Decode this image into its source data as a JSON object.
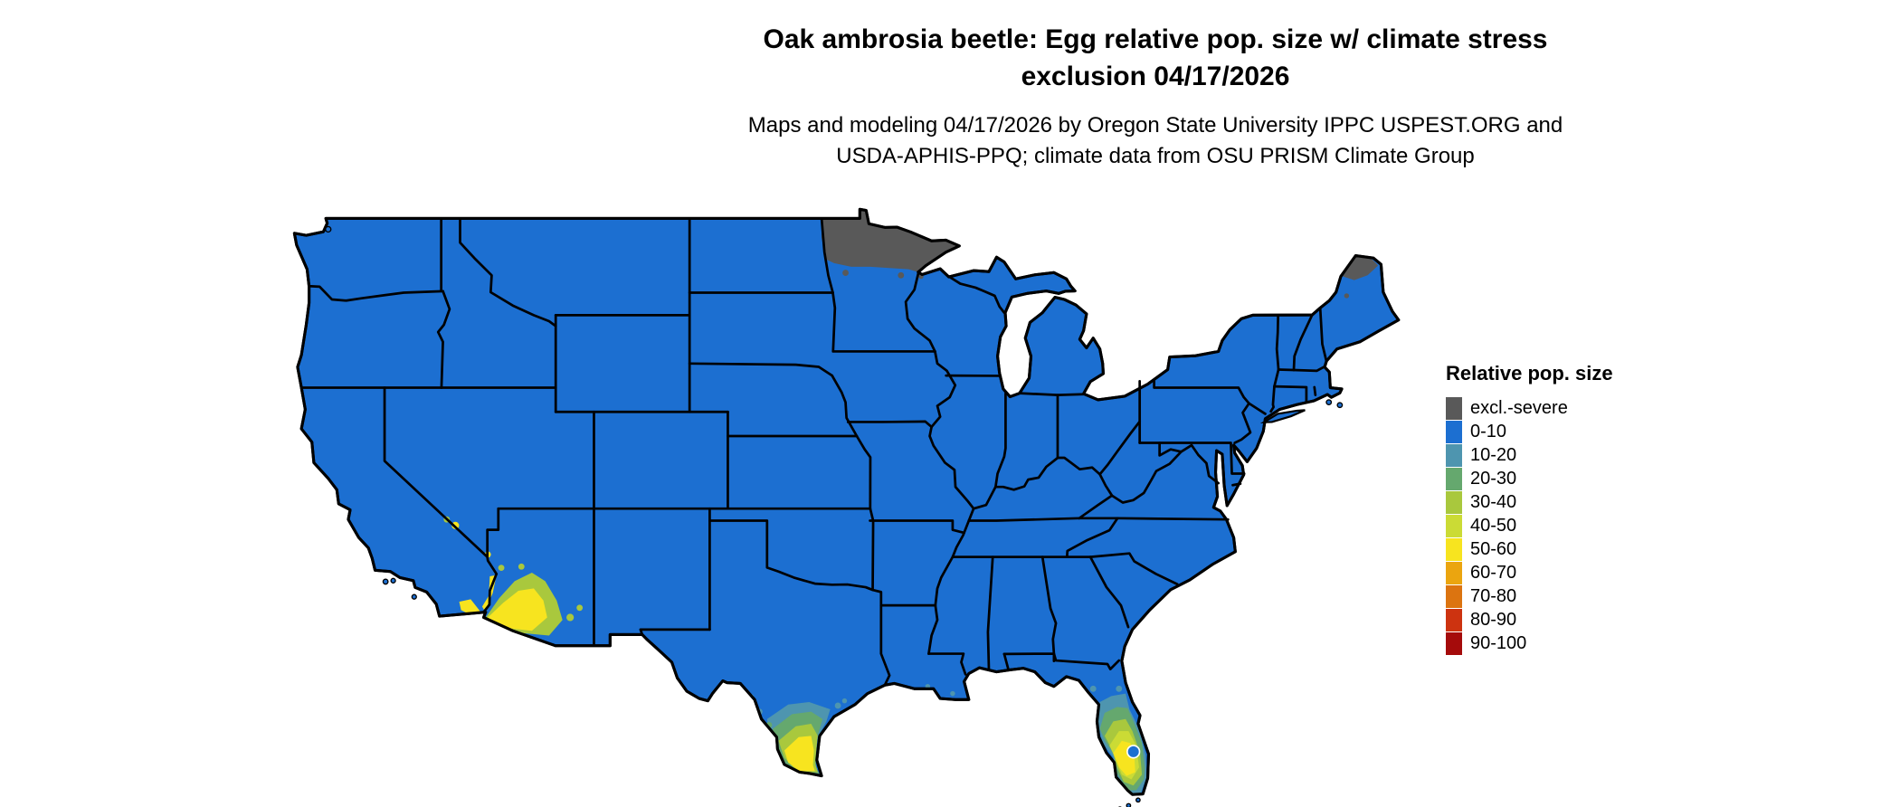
{
  "title": {
    "line1": "Oak ambrosia beetle: Egg relative pop. size w/ climate stress",
    "line2": "exclusion 04/17/2026"
  },
  "subtitle": {
    "line1": "Maps and modeling 04/17/2026 by Oregon State University IPPC USPEST.ORG and",
    "line2": "USDA-APHIS-PPQ; climate data from OSU PRISM Climate Group"
  },
  "legend": {
    "title": "Relative pop. size",
    "items": [
      {
        "label": "excl.-severe",
        "color": "#595959"
      },
      {
        "label": "0-10",
        "color": "#1c6fd1"
      },
      {
        "label": "10-20",
        "color": "#4e95af"
      },
      {
        "label": "20-30",
        "color": "#65a86e"
      },
      {
        "label": "30-40",
        "color": "#a9c83d"
      },
      {
        "label": "40-50",
        "color": "#cbdb35"
      },
      {
        "label": "50-60",
        "color": "#f7e41f"
      },
      {
        "label": "60-70",
        "color": "#eba50f"
      },
      {
        "label": "70-80",
        "color": "#dc7410"
      },
      {
        "label": "80-90",
        "color": "#cd3310"
      },
      {
        "label": "90-100",
        "color": "#a50b0b"
      }
    ]
  },
  "map": {
    "type": "choropleth",
    "region": "contiguous United States",
    "land_default_class": "0-10",
    "excluded_severe_areas": [
      "northern Minnesota",
      "northern Maine"
    ],
    "elevated_population_areas": [
      "southern Arizona and southeastern California deserts",
      "southern Texas lower Rio Grande valley and coast",
      "central and southern Florida"
    ],
    "background_color": "#ffffff",
    "water_color": "#ffffff",
    "boundary_color": "#000000"
  }
}
